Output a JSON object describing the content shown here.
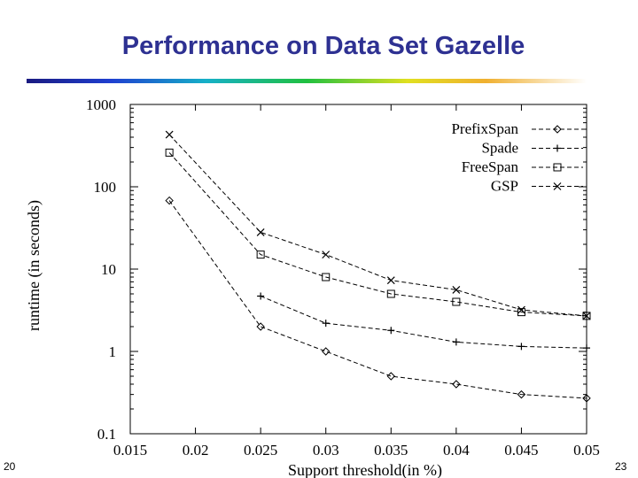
{
  "slide": {
    "title": "Performance on Data Set Gazelle",
    "number_left": "20",
    "number_right": "23"
  },
  "chart_data": {
    "type": "line",
    "title": "Performance on Data Set Gazelle",
    "xlabel": "Support threshold(in %)",
    "ylabel": "runtime (in seconds)",
    "xlim": [
      0.015,
      0.05
    ],
    "ylim": [
      0.1,
      1000
    ],
    "yscale": "log",
    "xticks": [
      0.015,
      0.02,
      0.025,
      0.03,
      0.035,
      0.04,
      0.045,
      0.05
    ],
    "xtick_labels": [
      "0.015",
      "0.02",
      "0.025",
      "0.03",
      "0.035",
      "0.04",
      "0.045",
      "0.05"
    ],
    "yticks": [
      0.1,
      1,
      10,
      100,
      1000
    ],
    "ytick_labels": [
      "0.1",
      "1",
      "10",
      "100",
      "1000"
    ],
    "legend_position": "top-right",
    "series": [
      {
        "name": "PrefixSpan",
        "marker": "diamond",
        "x": [
          0.018,
          0.025,
          0.03,
          0.035,
          0.04,
          0.045,
          0.05
        ],
        "values": [
          68,
          2.0,
          1.0,
          0.5,
          0.4,
          0.3,
          0.27
        ]
      },
      {
        "name": "Spade",
        "marker": "plus",
        "x": [
          0.025,
          0.03,
          0.035,
          0.04,
          0.045,
          0.05
        ],
        "values": [
          4.7,
          2.2,
          1.8,
          1.3,
          1.15,
          1.1
        ]
      },
      {
        "name": "FreeSpan",
        "marker": "square",
        "x": [
          0.018,
          0.025,
          0.03,
          0.035,
          0.04,
          0.045,
          0.05
        ],
        "values": [
          260,
          15,
          8,
          5,
          4,
          3,
          2.7
        ]
      },
      {
        "name": "GSP",
        "marker": "cross",
        "x": [
          0.018,
          0.025,
          0.03,
          0.035,
          0.04,
          0.045,
          0.05
        ],
        "values": [
          430,
          28,
          15,
          7.3,
          5.6,
          3.2,
          2.7
        ]
      }
    ]
  }
}
